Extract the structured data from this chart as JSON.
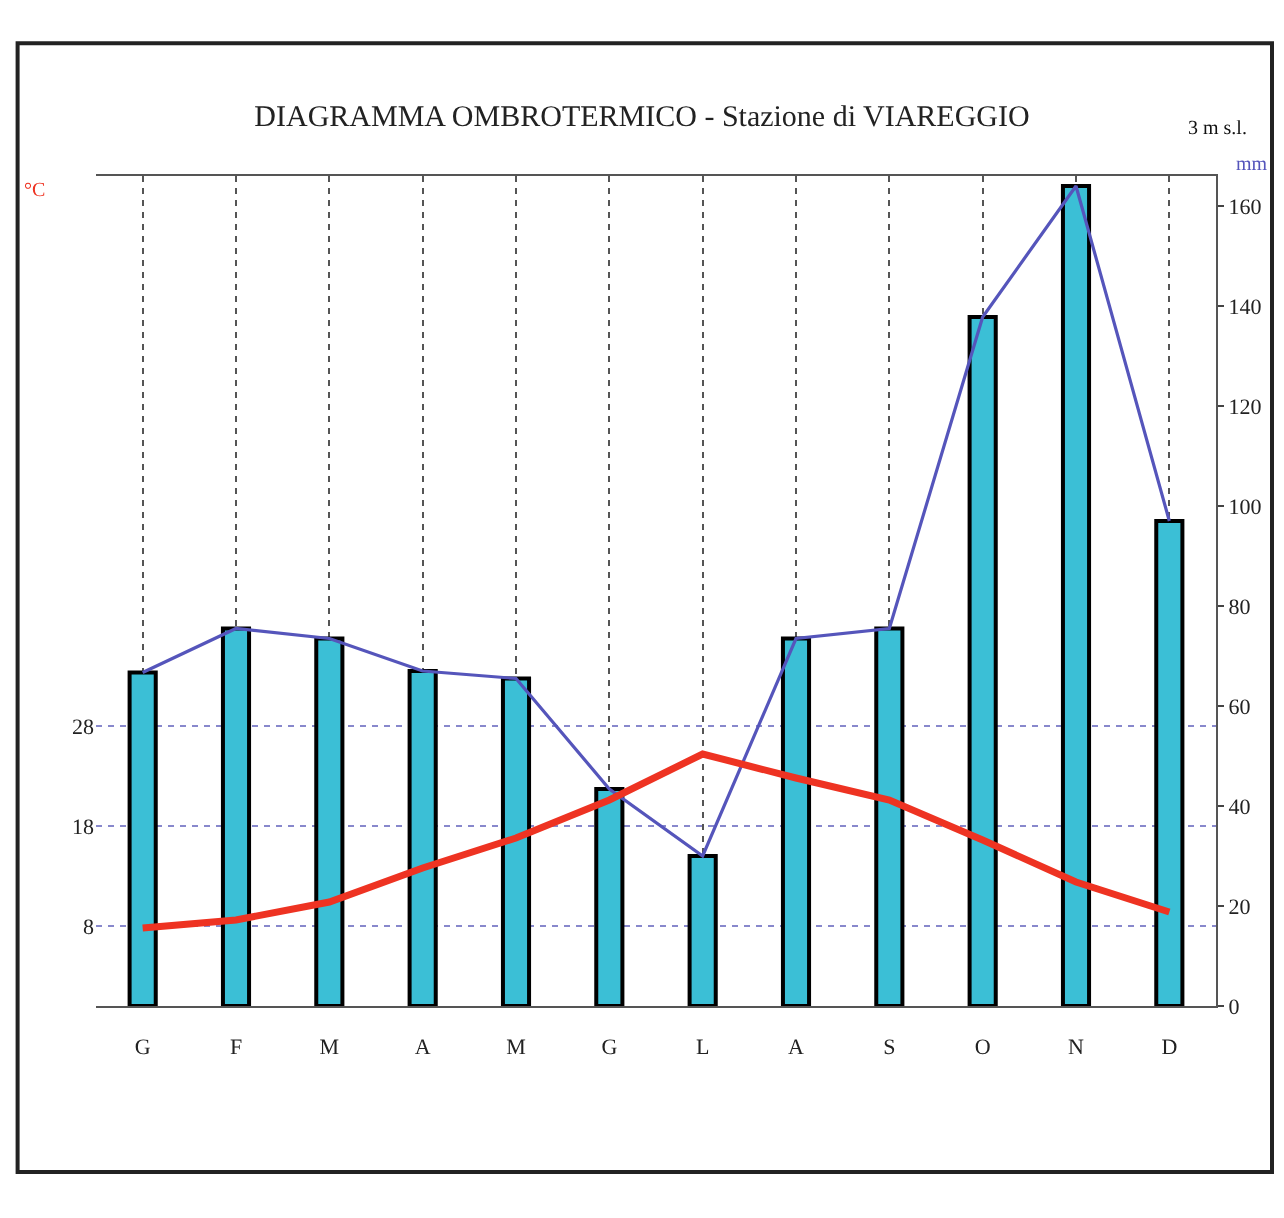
{
  "chart_data": {
    "type": "bar",
    "title": "DIAGRAMMA OMBROTERMICO - Stazione di VIAREGGIO",
    "categories": [
      "G",
      "F",
      "M",
      "A",
      "M",
      "G",
      "L",
      "A",
      "S",
      "O",
      "N",
      "D"
    ],
    "series": [
      {
        "axis": "y2",
        "color": "#3bbfd6",
        "values": [
          66.7,
          75.5,
          73.5,
          67,
          65.5,
          43.4,
          30,
          73.5,
          75.5,
          137.8,
          164,
          97
        ]
      },
      {
        "type": "line",
        "axis": "y2",
        "color": "#5555bb",
        "values": [
          66.7,
          75.5,
          73.5,
          67,
          65.5,
          43.4,
          30,
          73.5,
          75.5,
          137.8,
          164,
          97
        ]
      },
      {
        "type": "line",
        "axis": "y",
        "color": "#ee3322",
        "values": [
          7.8,
          8.6,
          10.4,
          13.8,
          16.8,
          20.6,
          25.2,
          22.8,
          20.6,
          16.6,
          12.4,
          9.4
        ]
      }
    ],
    "ylim": [
      0,
      83
    ],
    "yticks": [
      8,
      18,
      28
    ],
    "y2lim": [
      0,
      166
    ],
    "y2ticks": [
      0,
      20,
      40,
      60,
      80,
      100,
      120,
      140,
      160
    ],
    "annotations": [
      "°C",
      "mm",
      "3 m s.l."
    ],
    "grid": true,
    "legend": false,
    "marker": "none",
    "line_style": "solid"
  }
}
